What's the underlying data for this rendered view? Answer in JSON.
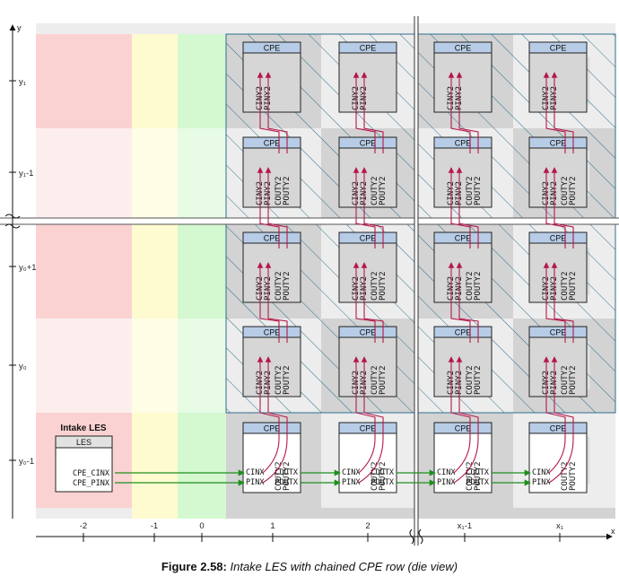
{
  "figure": {
    "label": "Figure 2.58:",
    "text": "Intake LES with chained CPE row (die view)"
  },
  "axes": {
    "x_arrow": "x",
    "y_arrow": "y",
    "x_ticks": [
      "-2",
      "-1",
      "0",
      "1",
      "2",
      "x₁-1",
      "x₁"
    ],
    "y_ticks": [
      "y₁",
      "y₁-1",
      "y₀+1",
      "y₀",
      "y₀-1"
    ]
  },
  "les": {
    "heading": "Intake LES",
    "box_title": "LES",
    "ports": [
      "CPE_CINX",
      "CPE_PINX"
    ]
  },
  "cpe": {
    "title": "CPE",
    "in_ports": [
      "CINY2",
      "PINY2"
    ],
    "out_ports": [
      "COUTY2",
      "POUTY2"
    ],
    "x_in_ports": [
      "CINX",
      "PINX"
    ],
    "x_out_ports": [
      "COUTX",
      "POUTX"
    ]
  },
  "colors": {
    "col_m2": "#fbd2d2",
    "col_m2_light": "#fdeeee",
    "col_m1": "#fefbd0",
    "col_0": "#d4f8cf",
    "grid_dark": "#d3d3d3",
    "grid_light": "#ededed",
    "cpe_header": "#b7cce6",
    "hatch": "#2f6f8f",
    "route_red": "#b5174b",
    "route_green": "#1e8f1e"
  }
}
